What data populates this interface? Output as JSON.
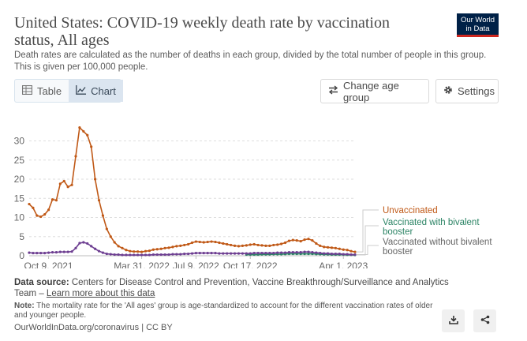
{
  "header": {
    "title": "United States: COVID-19 weekly death rate by vaccination status, All ages",
    "subtitle": "Death rates are calculated as the number of deaths in each group, divided by the total number of people in this group. This is given per 100,000 people.",
    "logo_line1": "Our World",
    "logo_line2": "in Data"
  },
  "toolbar": {
    "table_label": "Table",
    "chart_label": "Chart",
    "age_label": "Change age group",
    "settings_label": "Settings"
  },
  "chart_data": {
    "type": "line",
    "title": "United States: COVID-19 weekly death rate by vaccination status, All ages",
    "subtitle": "Death rates are calculated as the number of deaths in each group, divided by the total number of people in this group. This is given per 100,000 people.",
    "ylim": [
      0,
      33
    ],
    "y_ticks": [
      0,
      5,
      10,
      15,
      20,
      25,
      30
    ],
    "x_tick_labels": [
      "Oct 9, 2021",
      "Mar 31, 2022",
      "Jul 9, 2022",
      "Oct 17, 2022",
      "Apr 1, 2023"
    ],
    "x_tick_positions": [
      5,
      29,
      43,
      57,
      81
    ],
    "grid": "horizontal",
    "legend": "right",
    "series": [
      {
        "name": "Unvaccinated",
        "color": "#c05917",
        "values": [
          13.5,
          12.5,
          10.5,
          10.2,
          10.8,
          12.0,
          14.7,
          14.5,
          18.8,
          19.5,
          18.0,
          18.5,
          26.0,
          33.5,
          32.5,
          31.5,
          28.5,
          20.0,
          14.5,
          10.5,
          7.0,
          5.0,
          3.5,
          2.5,
          2.0,
          1.5,
          1.2,
          1.1,
          1.1,
          1.0,
          1.2,
          1.3,
          1.6,
          1.7,
          1.8,
          2.0,
          2.1,
          2.3,
          2.5,
          2.6,
          2.8,
          3.0,
          3.4,
          3.7,
          3.6,
          3.5,
          3.6,
          3.7,
          3.6,
          3.4,
          3.2,
          3.0,
          2.8,
          2.6,
          2.5,
          2.6,
          2.7,
          2.9,
          3.0,
          2.8,
          2.7,
          2.6,
          2.6,
          2.8,
          2.9,
          3.1,
          3.4,
          3.9,
          4.1,
          4.0,
          3.8,
          4.2,
          4.4,
          4.0,
          3.2,
          2.6,
          2.3,
          2.2,
          2.1,
          2.0,
          1.8,
          1.6,
          1.5,
          1.2,
          1.0
        ]
      },
      {
        "name": "Vaccinated with bivalent booster",
        "color": "#2c8465",
        "values": [
          null,
          null,
          null,
          null,
          null,
          null,
          null,
          null,
          null,
          null,
          null,
          null,
          null,
          null,
          null,
          null,
          null,
          null,
          null,
          null,
          null,
          null,
          null,
          null,
          null,
          null,
          null,
          null,
          null,
          null,
          null,
          null,
          null,
          null,
          null,
          null,
          null,
          null,
          null,
          null,
          null,
          null,
          null,
          null,
          null,
          null,
          null,
          null,
          null,
          null,
          null,
          null,
          null,
          null,
          null,
          null,
          0.3,
          0.3,
          0.3,
          0.3,
          0.35,
          0.35,
          0.35,
          0.4,
          0.4,
          0.4,
          0.45,
          0.5,
          0.5,
          0.5,
          0.5,
          0.5,
          0.5,
          0.5,
          0.45,
          0.4,
          0.35,
          0.35,
          0.3,
          0.3,
          0.3,
          0.3,
          0.25,
          0.25,
          0.2
        ]
      },
      {
        "name": "Vaccinated without bivalent booster",
        "color": "#6d3e91",
        "values": [
          0.8,
          0.7,
          0.7,
          0.7,
          0.7,
          0.8,
          0.9,
          0.9,
          1.0,
          1.0,
          1.0,
          1.1,
          2.0,
          3.3,
          3.5,
          3.2,
          2.5,
          1.8,
          1.2,
          0.8,
          0.5,
          0.4,
          0.3,
          0.3,
          0.2,
          0.2,
          0.2,
          0.2,
          0.2,
          0.2,
          0.2,
          0.2,
          0.3,
          0.3,
          0.3,
          0.3,
          0.3,
          0.4,
          0.4,
          0.4,
          0.5,
          0.5,
          0.6,
          0.7,
          0.7,
          0.7,
          0.7,
          0.7,
          0.7,
          0.6,
          0.6,
          0.6,
          0.6,
          0.6,
          0.6,
          0.6,
          0.6,
          0.6,
          0.7,
          0.7,
          0.7,
          0.7,
          0.7,
          0.7,
          0.8,
          0.8,
          0.8,
          0.9,
          0.9,
          0.9,
          0.9,
          1.0,
          1.0,
          0.9,
          0.8,
          0.7,
          0.6,
          0.6,
          0.5,
          0.5,
          0.5,
          0.4,
          0.4,
          0.3,
          0.3
        ]
      }
    ]
  },
  "legend": {
    "unvaccinated": "Unvaccinated",
    "bivalent_line1": "Vaccinated with bivalent",
    "bivalent_line2": "booster",
    "without_line1": "Vaccinated without bivalent",
    "without_line2": "booster"
  },
  "source": {
    "label": "Data source:",
    "text_line1": "Centers for Disease Control and Prevention, Vaccine Breakthrough/Surveillance and Analytics",
    "text_line2": "Team –",
    "link": "Learn more about this data"
  },
  "note": {
    "label": "Note:",
    "text": "The mortality rate for the 'All ages' group is age-standardized to account for the different vaccination rates of older and younger people."
  },
  "footer": {
    "text": "OurWorldInData.org/coronavirus | CC BY"
  },
  "icons": {
    "table": "table-icon",
    "chart": "line-chart-icon",
    "age": "swap-arrows-icon",
    "settings": "gear-icon",
    "download": "download-icon",
    "share": "share-icon"
  }
}
